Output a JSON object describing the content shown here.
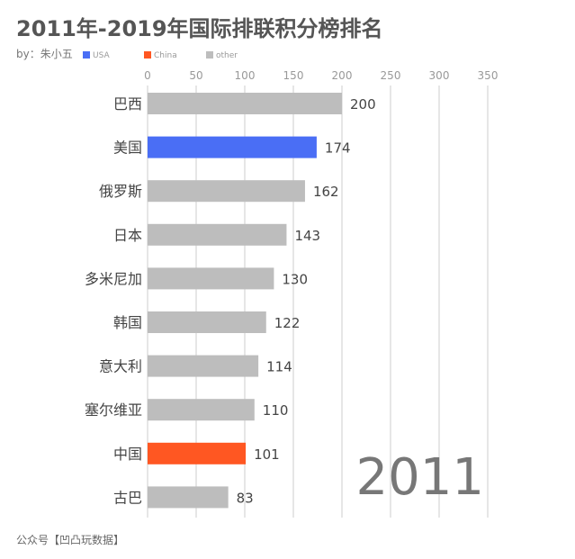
{
  "title": "2011年-2019年国际排联积分榜排名",
  "byline": "by：朱小五",
  "footer": "公众号【凹凸玩数据】",
  "legend": [
    {
      "label": "USA",
      "color": "#4a6ef5"
    },
    {
      "label": "China",
      "color": "#ff5722"
    },
    {
      "label": "other",
      "color": "#bdbdbd"
    }
  ],
  "chart_data": {
    "type": "bar",
    "orientation": "horizontal",
    "year_label": "2011",
    "xlim": [
      0,
      350
    ],
    "x_ticks": [
      0,
      50,
      100,
      150,
      200,
      250,
      300,
      350
    ],
    "grid": true,
    "legend_position": "top-left",
    "categories": [
      "巴西",
      "美国",
      "俄罗斯",
      "日本",
      "多米尼加",
      "韩国",
      "意大利",
      "塞尔维亚",
      "中国",
      "古巴"
    ],
    "values": [
      200,
      174,
      162,
      143,
      130,
      122,
      114,
      110,
      101,
      83
    ],
    "groups": [
      "other",
      "USA",
      "other",
      "other",
      "other",
      "other",
      "other",
      "other",
      "China",
      "other"
    ]
  }
}
